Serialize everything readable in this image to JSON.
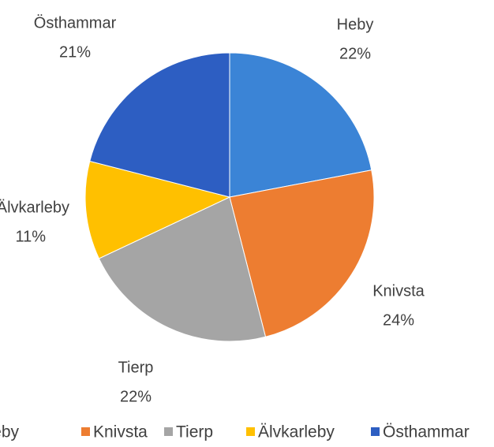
{
  "chart_data": {
    "type": "pie",
    "categories": [
      "Heby",
      "Knivsta",
      "Tierp",
      "Älvkarleby",
      "Östhammar"
    ],
    "values": [
      22,
      24,
      22,
      11,
      21
    ],
    "value_labels": [
      "22%",
      "24%",
      "22%",
      "11%",
      "21%"
    ],
    "colors": [
      "#3b84d6",
      "#ed7d31",
      "#a5a5a5",
      "#ffc000",
      "#2d5ec2"
    ],
    "legend": "bottom"
  }
}
